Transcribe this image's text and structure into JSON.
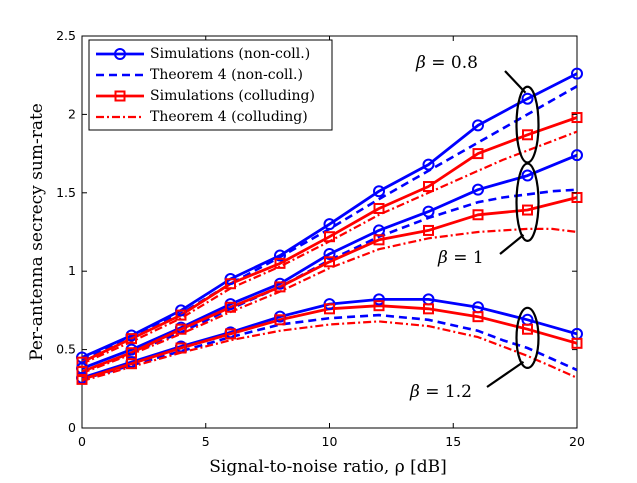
{
  "chart_data": {
    "type": "line",
    "title": "",
    "xlabel": "Signal-to-noise ratio, ρ [dB]",
    "ylabel": "Per-antenna secrecy sum-rate",
    "xlim": [
      0,
      20
    ],
    "ylim": [
      0,
      2.5
    ],
    "xticks": [
      0,
      5,
      10,
      15,
      20
    ],
    "xtick_labels": [
      "0",
      "5",
      "10",
      "15",
      "20"
    ],
    "yticks": [
      0,
      0.5,
      1,
      1.5,
      2,
      2.5
    ],
    "ytick_labels": [
      "0",
      "0.5",
      "1",
      "1.5",
      "2",
      "2.5"
    ],
    "grid": false,
    "legend_position": "top-left",
    "legend": [
      {
        "label": "Simulations (non-coll.)",
        "color": "#0000ff",
        "style": "solid",
        "marker": "circle"
      },
      {
        "label": "Theorem 4 (non-coll.)",
        "color": "#0000ff",
        "style": "dashed",
        "marker": "none"
      },
      {
        "label": "Simulations (colluding)",
        "color": "#ff0000",
        "style": "solid",
        "marker": "square"
      },
      {
        "label": "Theorem 4 (colluding)",
        "color": "#ff0000",
        "style": "dashdot",
        "marker": "none"
      }
    ],
    "annotations": [
      {
        "sym": "β",
        "text": " = 0.8"
      },
      {
        "sym": "β",
        "text": " = 1"
      },
      {
        "sym": "β",
        "text": " = 1.2"
      }
    ],
    "sim_x": [
      0,
      2,
      4,
      6,
      8,
      10,
      12,
      14,
      16,
      18,
      20
    ],
    "thm_x": [
      0,
      2,
      4,
      6,
      8,
      10,
      12,
      14,
      16,
      17,
      18,
      19,
      20
    ],
    "series": [
      {
        "name": "Simulations (non-coll.), β = 0.8",
        "group": 0,
        "kind": "sim",
        "x_ref": "sim_x",
        "values": [
          0.45,
          0.59,
          0.75,
          0.95,
          1.1,
          1.3,
          1.51,
          1.68,
          1.93,
          2.1,
          2.26
        ]
      },
      {
        "name": "Theorem 4 (non-coll.), β = 0.8",
        "group": 0,
        "kind": "thm",
        "x_ref": "thm_x",
        "values": [
          0.43,
          0.58,
          0.73,
          0.92,
          1.09,
          1.27,
          1.46,
          1.64,
          1.82,
          1.91,
          2.0,
          2.09,
          2.18
        ]
      },
      {
        "name": "Simulations (colluding), β = 0.8",
        "group": 0,
        "kind": "simc",
        "x_ref": "sim_x",
        "values": [
          0.42,
          0.57,
          0.72,
          0.92,
          1.05,
          1.22,
          1.4,
          1.54,
          1.75,
          1.87,
          1.98
        ]
      },
      {
        "name": "Theorem 4 (colluding), β = 0.8",
        "group": 0,
        "kind": "thmc",
        "x_ref": "thm_x",
        "values": [
          0.41,
          0.55,
          0.7,
          0.89,
          1.03,
          1.19,
          1.36,
          1.5,
          1.64,
          1.71,
          1.77,
          1.83,
          1.89
        ]
      },
      {
        "name": "Simulations (non-coll.), β = 1",
        "group": 1,
        "kind": "sim",
        "x_ref": "sim_x",
        "values": [
          0.38,
          0.5,
          0.64,
          0.79,
          0.92,
          1.11,
          1.26,
          1.38,
          1.52,
          1.61,
          1.74
        ]
      },
      {
        "name": "Theorem 4 (non-coll.), β = 1",
        "group": 1,
        "kind": "thm",
        "x_ref": "thm_x",
        "values": [
          0.36,
          0.48,
          0.61,
          0.76,
          0.9,
          1.07,
          1.22,
          1.34,
          1.44,
          1.47,
          1.49,
          1.51,
          1.52
        ]
      },
      {
        "name": "Simulations (colluding), β = 1",
        "group": 1,
        "kind": "simc",
        "x_ref": "sim_x",
        "values": [
          0.36,
          0.48,
          0.63,
          0.77,
          0.9,
          1.06,
          1.2,
          1.26,
          1.36,
          1.39,
          1.47
        ]
      },
      {
        "name": "Theorem 4 (colluding), β = 1",
        "group": 1,
        "kind": "thmc",
        "x_ref": "thm_x",
        "values": [
          0.35,
          0.47,
          0.6,
          0.74,
          0.87,
          1.02,
          1.14,
          1.21,
          1.25,
          1.26,
          1.27,
          1.27,
          1.25
        ]
      },
      {
        "name": "Simulations (non-coll.), β = 1.2",
        "group": 2,
        "kind": "sim",
        "x_ref": "sim_x",
        "values": [
          0.32,
          0.42,
          0.52,
          0.61,
          0.71,
          0.79,
          0.82,
          0.82,
          0.77,
          0.69,
          0.6
        ]
      },
      {
        "name": "Theorem 4 (non-coll.), β = 1.2",
        "group": 2,
        "kind": "thm",
        "x_ref": "thm_x",
        "values": [
          0.31,
          0.4,
          0.49,
          0.58,
          0.66,
          0.7,
          0.72,
          0.69,
          0.62,
          0.56,
          0.51,
          0.44,
          0.37
        ]
      },
      {
        "name": "Simulations (colluding), β = 1.2",
        "group": 2,
        "kind": "simc",
        "x_ref": "sim_x",
        "values": [
          0.31,
          0.41,
          0.51,
          0.6,
          0.69,
          0.76,
          0.78,
          0.76,
          0.71,
          0.63,
          0.54
        ]
      },
      {
        "name": "Theorem 4 (colluding), β = 1.2",
        "group": 2,
        "kind": "thmc",
        "x_ref": "thm_x",
        "values": [
          0.3,
          0.39,
          0.48,
          0.56,
          0.62,
          0.66,
          0.68,
          0.65,
          0.58,
          0.52,
          0.46,
          0.39,
          0.32
        ]
      }
    ]
  },
  "colors": {
    "blue": "#0000ff",
    "red": "#ff0000",
    "axis": "#000000",
    "background": "#ffffff"
  }
}
